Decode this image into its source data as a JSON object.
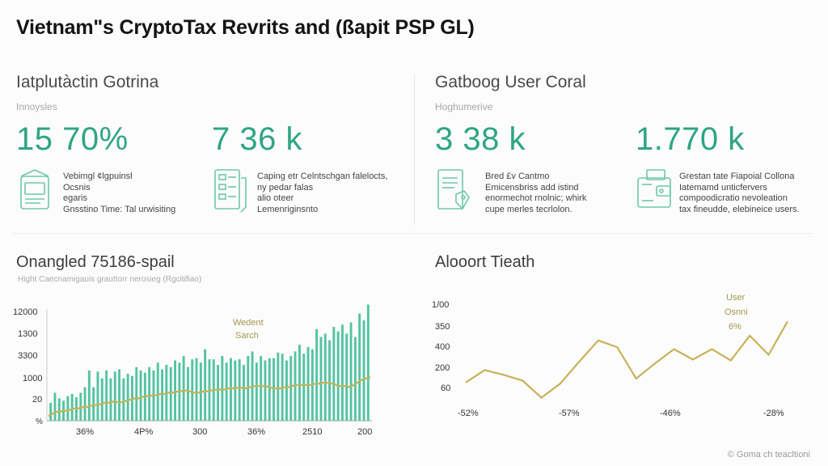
{
  "title": "Vietnam\"s CryptoTax Revrits and (ßapit PSP GL)",
  "panels": [
    {
      "heading": "Iatplutàctin Gotrina",
      "subheading": "Innoysles",
      "metrics": [
        {
          "value": "15 70%",
          "icon": "building-document-icon",
          "desc": [
            "Vebimgl ¢lgpuinsl",
            "Ocsnis",
            "egaris",
            "Gnsstino Time: Tal urwisiting"
          ]
        },
        {
          "value": "7 36 k",
          "icon": "checklist-document-icon",
          "desc": [
            "Caping etr Celntschgan falelocts,",
            "ny pedar falas",
            "alio oteer",
            "Lemenriginsnto"
          ]
        }
      ]
    },
    {
      "heading": "Gatboog User Coral",
      "subheading": "Hoghumerive",
      "metrics": [
        {
          "value": "3 38 k",
          "icon": "document-tag-icon",
          "desc": [
            "Bred £v Cantmo",
            "Emicensbriss add istind",
            "enormechot rnolnic; whirk",
            "cupe merles tecrlolon."
          ]
        },
        {
          "value": "1.770 k",
          "icon": "wallet-icon",
          "desc": [
            "Grestan tate Fiapoial Collona",
            "Iatemamd unticfervers",
            "compoodicratio nevoleation",
            "tax fineudde, elebineice users."
          ]
        }
      ]
    }
  ],
  "charts": {
    "left_title": "Onangled 75186-spail",
    "left_subtitle": "Hight Caecnamigauis grauttorr nerosieg (Rgcitifiao)",
    "right_title": "Alooort Tieath"
  },
  "chart_data": [
    {
      "type": "bar",
      "title": "Onangled 75186-spail",
      "subtitle": "Hight Caecnamigauis grauttorr nerosieg (Rgcitifiao)",
      "y_tick_labels": [
        "12000",
        "1300",
        "3300",
        "1000",
        "20",
        "%"
      ],
      "x_tick_labels": [
        "36%",
        "4P%",
        "300",
        "36%",
        "2510",
        "200"
      ],
      "annotation": [
        "Wedent",
        "Sarch"
      ],
      "colors": {
        "bars": "#54c3a1",
        "line": "#c2b35c"
      },
      "ylim": [
        0,
        100
      ],
      "series": [
        {
          "type": "bar",
          "values": [
            16,
            25,
            20,
            18,
            22,
            24,
            21,
            25,
            30,
            45,
            30,
            44,
            38,
            45,
            38,
            44,
            46,
            38,
            42,
            40,
            48,
            45,
            43,
            48,
            45,
            52,
            46,
            50,
            48,
            54,
            52,
            58,
            48,
            55,
            56,
            52,
            64,
            55,
            55,
            50,
            58,
            52,
            56,
            54,
            55,
            50,
            58,
            62,
            52,
            58,
            54,
            56,
            56,
            61,
            60,
            54,
            58,
            62,
            68,
            60,
            66,
            64,
            82,
            75,
            78,
            72,
            84,
            80,
            86,
            78,
            88,
            75,
            96,
            90,
            104
          ]
        },
        {
          "type": "line",
          "values": [
            4,
            6,
            8,
            8,
            9,
            9,
            10,
            11,
            11,
            12,
            12,
            13,
            14,
            14,
            15,
            16,
            16,
            17,
            17,
            16,
            17,
            18,
            19,
            20,
            20,
            21,
            22,
            22,
            23,
            23,
            24,
            24,
            25,
            25,
            26,
            26,
            27,
            27,
            26,
            25,
            25,
            26,
            26,
            27,
            27,
            28,
            28,
            28,
            29,
            29,
            29,
            30,
            29,
            29,
            30,
            31,
            31,
            31,
            31,
            30,
            29,
            29,
            29,
            30,
            30,
            31,
            32,
            32,
            32,
            32,
            32,
            33,
            33,
            34,
            34,
            34,
            33,
            32,
            31,
            31,
            30,
            31,
            33,
            35,
            37,
            38,
            39
          ]
        }
      ]
    },
    {
      "type": "line",
      "title": "Alooort Tieath",
      "y_tick_labels": [
        "1/00",
        "350",
        "400",
        "200",
        "60"
      ],
      "x_tick_labels": [
        "-52%",
        "-57%",
        "-46%",
        "-28%"
      ],
      "annotation": [
        "User",
        "Osnni",
        "6%"
      ],
      "color": "#c9b15a",
      "ylim": [
        0,
        100
      ],
      "values": [
        18,
        31,
        26,
        20,
        2,
        17,
        40,
        62,
        55,
        22,
        38,
        53,
        42,
        53,
        41,
        67,
        47,
        82
      ]
    }
  ],
  "footer": "© Goma ch teacltioni"
}
